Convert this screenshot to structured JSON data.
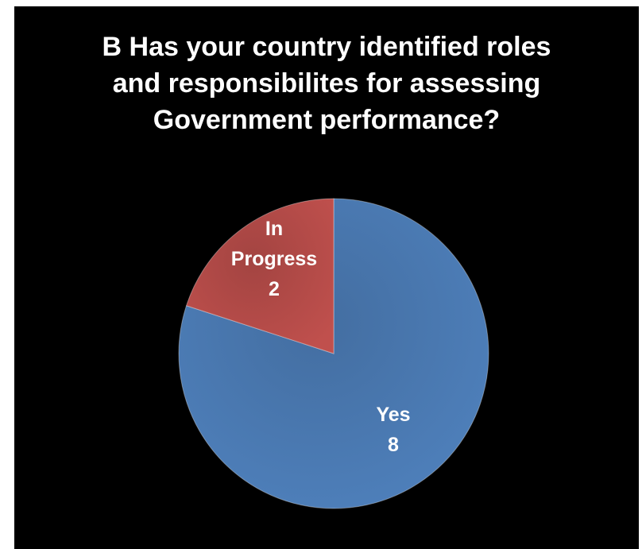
{
  "chart_data": {
    "type": "pie",
    "title": "B Has your country identified roles and responsibilites for assessing Government performance?",
    "title_lines": [
      "B Has your country identified roles",
      "and responsibilites for assessing",
      "Government performance?"
    ],
    "slices": [
      {
        "category": "Yes",
        "label_lines": [
          "Yes"
        ],
        "value": 8,
        "value_label": "8",
        "color": "#4f81bd"
      },
      {
        "category": "In Progress",
        "label_lines": [
          "In",
          "Progress"
        ],
        "value": 2,
        "value_label": "2",
        "color": "#c0504d"
      }
    ],
    "background_color": "#000000",
    "legend": "none"
  }
}
